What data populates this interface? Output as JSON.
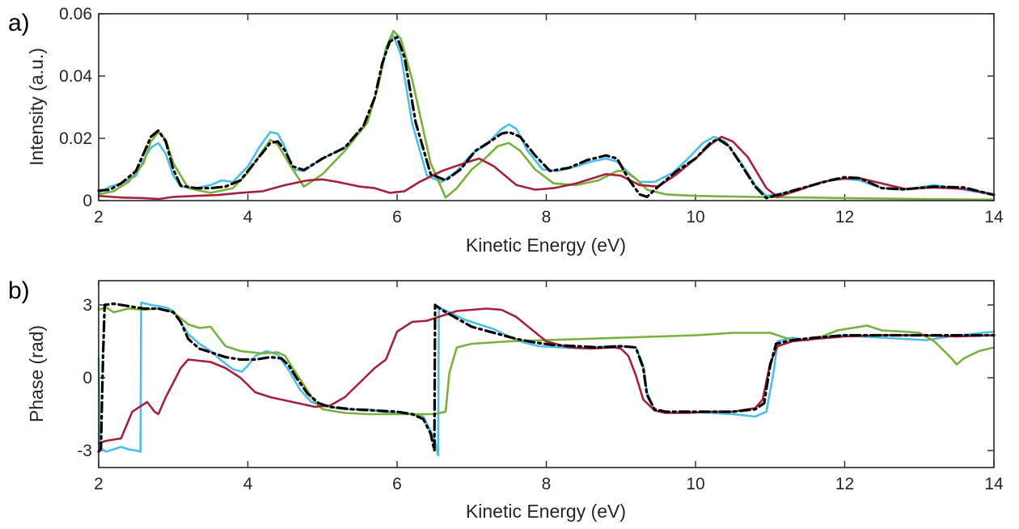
{
  "chart_data": [
    {
      "type": "line",
      "panel_label": "a)",
      "xlabel": "Kinetic Energy (eV)",
      "ylabel": "Intensity (a.u.)",
      "xlim": [
        2,
        14
      ],
      "ylim": [
        0,
        0.06
      ],
      "xticks": [
        2,
        4,
        6,
        8,
        10,
        12,
        14
      ],
      "yticks": [
        0,
        0.02,
        0.04,
        0.06
      ],
      "ytick_labels": [
        "0",
        "0.02",
        "0.04",
        "0.06"
      ],
      "grid": false,
      "legend": "none",
      "series": [
        {
          "color": "#4ebee9",
          "style": "solid",
          "x": [
            2.0,
            2.15,
            2.3,
            2.5,
            2.6,
            2.7,
            2.8,
            2.9,
            3.0,
            3.1,
            3.3,
            3.5,
            3.65,
            3.8,
            4.0,
            4.15,
            4.3,
            4.4,
            4.5,
            4.6,
            4.75,
            5.0,
            5.3,
            5.6,
            5.75,
            5.85,
            5.95,
            6.05,
            6.2,
            6.4,
            6.6,
            6.8,
            7.0,
            7.2,
            7.4,
            7.5,
            7.6,
            7.75,
            7.95,
            8.15,
            8.4,
            8.6,
            8.8,
            8.95,
            9.1,
            9.25,
            9.45,
            9.7,
            9.9,
            10.1,
            10.25,
            10.4,
            10.6,
            10.8,
            10.95,
            11.2,
            11.5,
            11.8,
            12.0,
            12.2,
            12.5,
            12.8,
            13.2,
            13.6,
            14.0
          ],
          "y": [
            0.0025,
            0.0045,
            0.0055,
            0.008,
            0.013,
            0.017,
            0.0185,
            0.015,
            0.008,
            0.0045,
            0.004,
            0.005,
            0.0065,
            0.006,
            0.011,
            0.017,
            0.022,
            0.0215,
            0.017,
            0.01,
            0.0095,
            0.0135,
            0.017,
            0.025,
            0.037,
            0.048,
            0.053,
            0.047,
            0.025,
            0.008,
            0.006,
            0.0095,
            0.015,
            0.018,
            0.023,
            0.0245,
            0.023,
            0.016,
            0.01,
            0.0095,
            0.011,
            0.0125,
            0.0135,
            0.0125,
            0.009,
            0.006,
            0.006,
            0.009,
            0.0135,
            0.0185,
            0.0205,
            0.019,
            0.0125,
            0.005,
            0.0015,
            0.0025,
            0.0045,
            0.0065,
            0.007,
            0.0065,
            0.004,
            0.0035,
            0.005,
            0.0035,
            0.0018
          ]
        },
        {
          "color": "#7ab03d",
          "style": "solid",
          "x": [
            2.0,
            2.2,
            2.4,
            2.6,
            2.7,
            2.8,
            2.9,
            3.0,
            3.2,
            3.5,
            3.8,
            4.0,
            4.2,
            4.3,
            4.4,
            4.55,
            4.75,
            5.0,
            5.3,
            5.6,
            5.75,
            5.85,
            5.95,
            6.05,
            6.2,
            6.45,
            6.65,
            6.8,
            7.0,
            7.2,
            7.35,
            7.5,
            7.65,
            7.85,
            8.1,
            8.4,
            8.7,
            8.95,
            9.05,
            9.2,
            9.35,
            9.6,
            10.0,
            10.5,
            11.0,
            11.5,
            12.0,
            13.0,
            14.0
          ],
          "y": [
            0.002,
            0.003,
            0.006,
            0.012,
            0.019,
            0.022,
            0.0195,
            0.012,
            0.004,
            0.0025,
            0.004,
            0.009,
            0.016,
            0.0195,
            0.018,
            0.012,
            0.0045,
            0.0085,
            0.016,
            0.025,
            0.037,
            0.049,
            0.0545,
            0.052,
            0.039,
            0.012,
            0.001,
            0.004,
            0.01,
            0.014,
            0.0175,
            0.0185,
            0.016,
            0.01,
            0.0055,
            0.005,
            0.0065,
            0.0095,
            0.0095,
            0.007,
            0.0035,
            0.002,
            0.0015,
            0.0013,
            0.0011,
            0.001,
            0.0008,
            0.0005,
            0.0003
          ]
        },
        {
          "color": "#a3223f",
          "style": "solid",
          "x": [
            2.0,
            2.3,
            2.6,
            2.8,
            3.0,
            3.3,
            3.6,
            3.9,
            4.2,
            4.5,
            4.8,
            5.0,
            5.2,
            5.5,
            5.7,
            5.9,
            6.1,
            6.3,
            6.6,
            6.9,
            7.1,
            7.3,
            7.6,
            7.85,
            8.1,
            8.4,
            8.8,
            9.0,
            9.25,
            9.5,
            9.75,
            10.0,
            10.2,
            10.35,
            10.5,
            10.7,
            10.95,
            11.1,
            11.4,
            11.7,
            11.95,
            12.2,
            12.5,
            12.8,
            13.2,
            13.6,
            14.0
          ],
          "y": [
            0.0015,
            0.001,
            0.0008,
            0.0005,
            0.0012,
            0.0015,
            0.0018,
            0.0025,
            0.003,
            0.005,
            0.0065,
            0.0068,
            0.006,
            0.0045,
            0.004,
            0.0025,
            0.003,
            0.006,
            0.0095,
            0.012,
            0.0135,
            0.011,
            0.005,
            0.0035,
            0.004,
            0.0055,
            0.0085,
            0.008,
            0.005,
            0.0045,
            0.0085,
            0.0135,
            0.018,
            0.0205,
            0.019,
            0.014,
            0.004,
            0.0012,
            0.0035,
            0.006,
            0.007,
            0.0072,
            0.0055,
            0.0038,
            0.0042,
            0.0038,
            0.002
          ]
        },
        {
          "color": "#000000",
          "style": "dashdot",
          "x": [
            2.0,
            2.15,
            2.3,
            2.5,
            2.6,
            2.7,
            2.8,
            2.9,
            3.0,
            3.1,
            3.3,
            3.5,
            3.7,
            3.9,
            4.1,
            4.3,
            4.4,
            4.5,
            4.6,
            4.75,
            5.0,
            5.3,
            5.55,
            5.7,
            5.8,
            5.9,
            6.0,
            6.1,
            6.25,
            6.45,
            6.65,
            6.85,
            7.05,
            7.25,
            7.4,
            7.5,
            7.65,
            7.85,
            8.05,
            8.3,
            8.55,
            8.8,
            8.95,
            9.1,
            9.25,
            9.35,
            9.5,
            9.75,
            10.0,
            10.2,
            10.3,
            10.45,
            10.6,
            10.8,
            10.95,
            11.2,
            11.5,
            11.8,
            12.0,
            12.2,
            12.5,
            12.8,
            13.2,
            13.6,
            14.0
          ],
          "y": [
            0.0032,
            0.0035,
            0.0055,
            0.0095,
            0.015,
            0.0205,
            0.0225,
            0.019,
            0.01,
            0.0048,
            0.004,
            0.004,
            0.0045,
            0.0065,
            0.0125,
            0.0185,
            0.019,
            0.016,
            0.011,
            0.0098,
            0.0135,
            0.017,
            0.024,
            0.033,
            0.044,
            0.051,
            0.0525,
            0.046,
            0.025,
            0.0085,
            0.0065,
            0.01,
            0.016,
            0.019,
            0.0215,
            0.022,
            0.0205,
            0.0145,
            0.0095,
            0.0105,
            0.013,
            0.0145,
            0.0135,
            0.007,
            0.002,
            0.0012,
            0.0045,
            0.0095,
            0.0135,
            0.0185,
            0.0198,
            0.0175,
            0.012,
            0.0045,
            0.0008,
            0.0025,
            0.0045,
            0.0065,
            0.0075,
            0.0072,
            0.004,
            0.0036,
            0.0045,
            0.0042,
            0.0018
          ]
        }
      ]
    },
    {
      "type": "line",
      "panel_label": "b)",
      "xlabel": "Kinetic Energy (eV)",
      "ylabel": "Phase (rad)",
      "xlim": [
        2,
        14
      ],
      "ylim": [
        -3.7,
        4.0
      ],
      "xticks": [
        2,
        4,
        6,
        8,
        10,
        12,
        14
      ],
      "yticks": [
        -3,
        0,
        3
      ],
      "ytick_labels": [
        "-3",
        "0",
        "3"
      ],
      "grid": false,
      "legend": "none",
      "series": [
        {
          "color": "#4ebee9",
          "style": "solid",
          "x": [
            2.0,
            2.02,
            2.05,
            2.1,
            2.2,
            2.3,
            2.4,
            2.5,
            2.56,
            2.57,
            2.7,
            2.9,
            3.0,
            3.1,
            3.2,
            3.35,
            3.5,
            3.65,
            3.8,
            3.92,
            4.0,
            4.1,
            4.25,
            4.4,
            4.55,
            4.7,
            4.85,
            5.0,
            5.3,
            5.6,
            5.8,
            6.0,
            6.2,
            6.35,
            6.5,
            6.55,
            6.56,
            6.7,
            6.9,
            7.1,
            7.3,
            7.5,
            7.7,
            7.9,
            8.2,
            8.5,
            8.8,
            9.0,
            9.2,
            9.3,
            9.35,
            9.45,
            9.6,
            9.9,
            10.2,
            10.5,
            10.8,
            10.95,
            11.05,
            11.1,
            11.3,
            11.5,
            11.8,
            12.0,
            12.2,
            12.5,
            12.8,
            13.1,
            13.4,
            13.7,
            14.0
          ],
          "y": [
            0.8,
            -2.9,
            -2.95,
            -3.05,
            -2.95,
            -2.85,
            -2.95,
            -3.0,
            -3.05,
            3.1,
            3.0,
            2.9,
            2.75,
            2.3,
            1.8,
            1.4,
            1.1,
            0.7,
            0.35,
            0.25,
            0.5,
            0.9,
            1.1,
            0.95,
            0.3,
            -0.5,
            -1.0,
            -1.15,
            -1.3,
            -1.3,
            -1.4,
            -1.45,
            -1.5,
            -1.6,
            -2.5,
            -3.2,
            2.9,
            2.7,
            2.4,
            2.2,
            2.0,
            1.7,
            1.45,
            1.3,
            1.25,
            1.2,
            1.3,
            1.3,
            1.25,
            0.5,
            -0.6,
            -1.35,
            -1.45,
            -1.4,
            -1.45,
            -1.5,
            -1.6,
            -1.4,
            0.3,
            1.5,
            1.65,
            1.55,
            1.7,
            1.75,
            1.7,
            1.65,
            1.6,
            1.55,
            1.7,
            1.8,
            1.9
          ]
        },
        {
          "color": "#7ab03d",
          "style": "solid",
          "x": [
            2.0,
            2.1,
            2.2,
            2.4,
            2.6,
            2.8,
            3.0,
            3.2,
            3.35,
            3.5,
            3.6,
            3.7,
            3.9,
            4.2,
            4.4,
            4.5,
            4.6,
            4.75,
            4.9,
            5.0,
            5.3,
            5.6,
            5.9,
            6.2,
            6.5,
            6.65,
            6.7,
            6.8,
            7.0,
            7.5,
            8.0,
            8.5,
            9.0,
            9.5,
            10.0,
            10.5,
            11.0,
            11.3,
            11.5,
            11.7,
            11.9,
            12.1,
            12.3,
            12.5,
            12.8,
            13.0,
            13.2,
            13.4,
            13.5,
            13.6,
            13.8,
            14.0
          ],
          "y": [
            2.8,
            2.9,
            2.7,
            2.85,
            2.8,
            2.85,
            2.7,
            2.2,
            2.05,
            2.1,
            1.7,
            1.3,
            1.1,
            1.0,
            1.05,
            0.9,
            0.4,
            -0.3,
            -1.0,
            -1.3,
            -1.45,
            -1.5,
            -1.5,
            -1.5,
            -1.5,
            -1.4,
            0.2,
            1.25,
            1.4,
            1.5,
            1.55,
            1.6,
            1.65,
            1.7,
            1.75,
            1.85,
            1.85,
            1.55,
            1.55,
            1.7,
            1.95,
            2.05,
            2.15,
            1.95,
            1.9,
            1.85,
            1.5,
            0.9,
            0.55,
            0.8,
            1.1,
            1.25
          ]
        },
        {
          "color": "#a3223f",
          "style": "solid",
          "x": [
            2.0,
            2.1,
            2.3,
            2.45,
            2.55,
            2.65,
            2.75,
            2.8,
            2.9,
            3.0,
            3.1,
            3.2,
            3.35,
            3.5,
            3.7,
            3.9,
            4.1,
            4.3,
            4.6,
            4.9,
            5.1,
            5.3,
            5.5,
            5.7,
            5.85,
            6.0,
            6.2,
            6.4,
            6.6,
            6.8,
            7.0,
            7.2,
            7.4,
            7.6,
            7.8,
            8.0,
            8.3,
            8.6,
            8.9,
            9.0,
            9.1,
            9.2,
            9.3,
            9.45,
            9.6,
            9.9,
            10.2,
            10.5,
            10.8,
            10.9,
            11.0,
            11.1,
            11.3,
            11.6,
            12.0,
            12.5,
            13.0,
            13.5,
            14.0
          ],
          "y": [
            -2.7,
            -2.6,
            -2.5,
            -1.4,
            -1.2,
            -1.0,
            -1.4,
            -1.5,
            -0.8,
            -0.2,
            0.4,
            0.75,
            0.7,
            0.65,
            0.4,
            0.0,
            -0.6,
            -0.8,
            -1.0,
            -1.2,
            -1.15,
            -0.8,
            -0.2,
            0.4,
            0.75,
            1.9,
            2.3,
            2.35,
            2.55,
            2.75,
            2.8,
            2.85,
            2.8,
            2.5,
            2.0,
            1.5,
            1.25,
            1.2,
            1.25,
            1.2,
            0.9,
            0.1,
            -0.9,
            -1.35,
            -1.45,
            -1.45,
            -1.4,
            -1.4,
            -1.25,
            -0.9,
            0.6,
            1.3,
            1.5,
            1.6,
            1.7,
            1.75,
            1.75,
            1.7,
            1.75
          ]
        },
        {
          "color": "#000000",
          "style": "dashdot",
          "x": [
            2.0,
            2.03,
            2.06,
            2.08,
            2.2,
            2.4,
            2.6,
            2.8,
            3.0,
            3.1,
            3.2,
            3.35,
            3.5,
            3.7,
            3.9,
            4.1,
            4.3,
            4.45,
            4.55,
            4.65,
            4.8,
            4.95,
            5.1,
            5.4,
            5.7,
            6.0,
            6.2,
            6.35,
            6.45,
            6.5,
            6.51,
            6.6,
            6.8,
            7.0,
            7.3,
            7.6,
            7.85,
            8.1,
            8.4,
            8.7,
            9.0,
            9.2,
            9.3,
            9.35,
            9.45,
            9.6,
            9.9,
            10.2,
            10.5,
            10.8,
            10.92,
            11.0,
            11.08,
            11.3,
            11.6,
            12.0,
            12.5,
            13.0,
            13.5,
            14.0
          ],
          "y": [
            -3.05,
            -2.9,
            1.0,
            3.0,
            3.05,
            2.95,
            2.85,
            2.85,
            2.7,
            2.3,
            1.6,
            1.2,
            1.05,
            0.85,
            0.75,
            0.75,
            0.85,
            0.8,
            0.5,
            0.0,
            -0.65,
            -1.05,
            -1.2,
            -1.3,
            -1.35,
            -1.4,
            -1.5,
            -1.7,
            -2.3,
            -3.0,
            3.0,
            2.8,
            2.45,
            2.1,
            1.85,
            1.6,
            1.45,
            1.35,
            1.3,
            1.25,
            1.3,
            1.25,
            0.4,
            -0.7,
            -1.3,
            -1.4,
            -1.4,
            -1.4,
            -1.4,
            -1.3,
            -1.05,
            0.5,
            1.4,
            1.55,
            1.65,
            1.75,
            1.75,
            1.75,
            1.75,
            1.75
          ]
        }
      ]
    }
  ]
}
